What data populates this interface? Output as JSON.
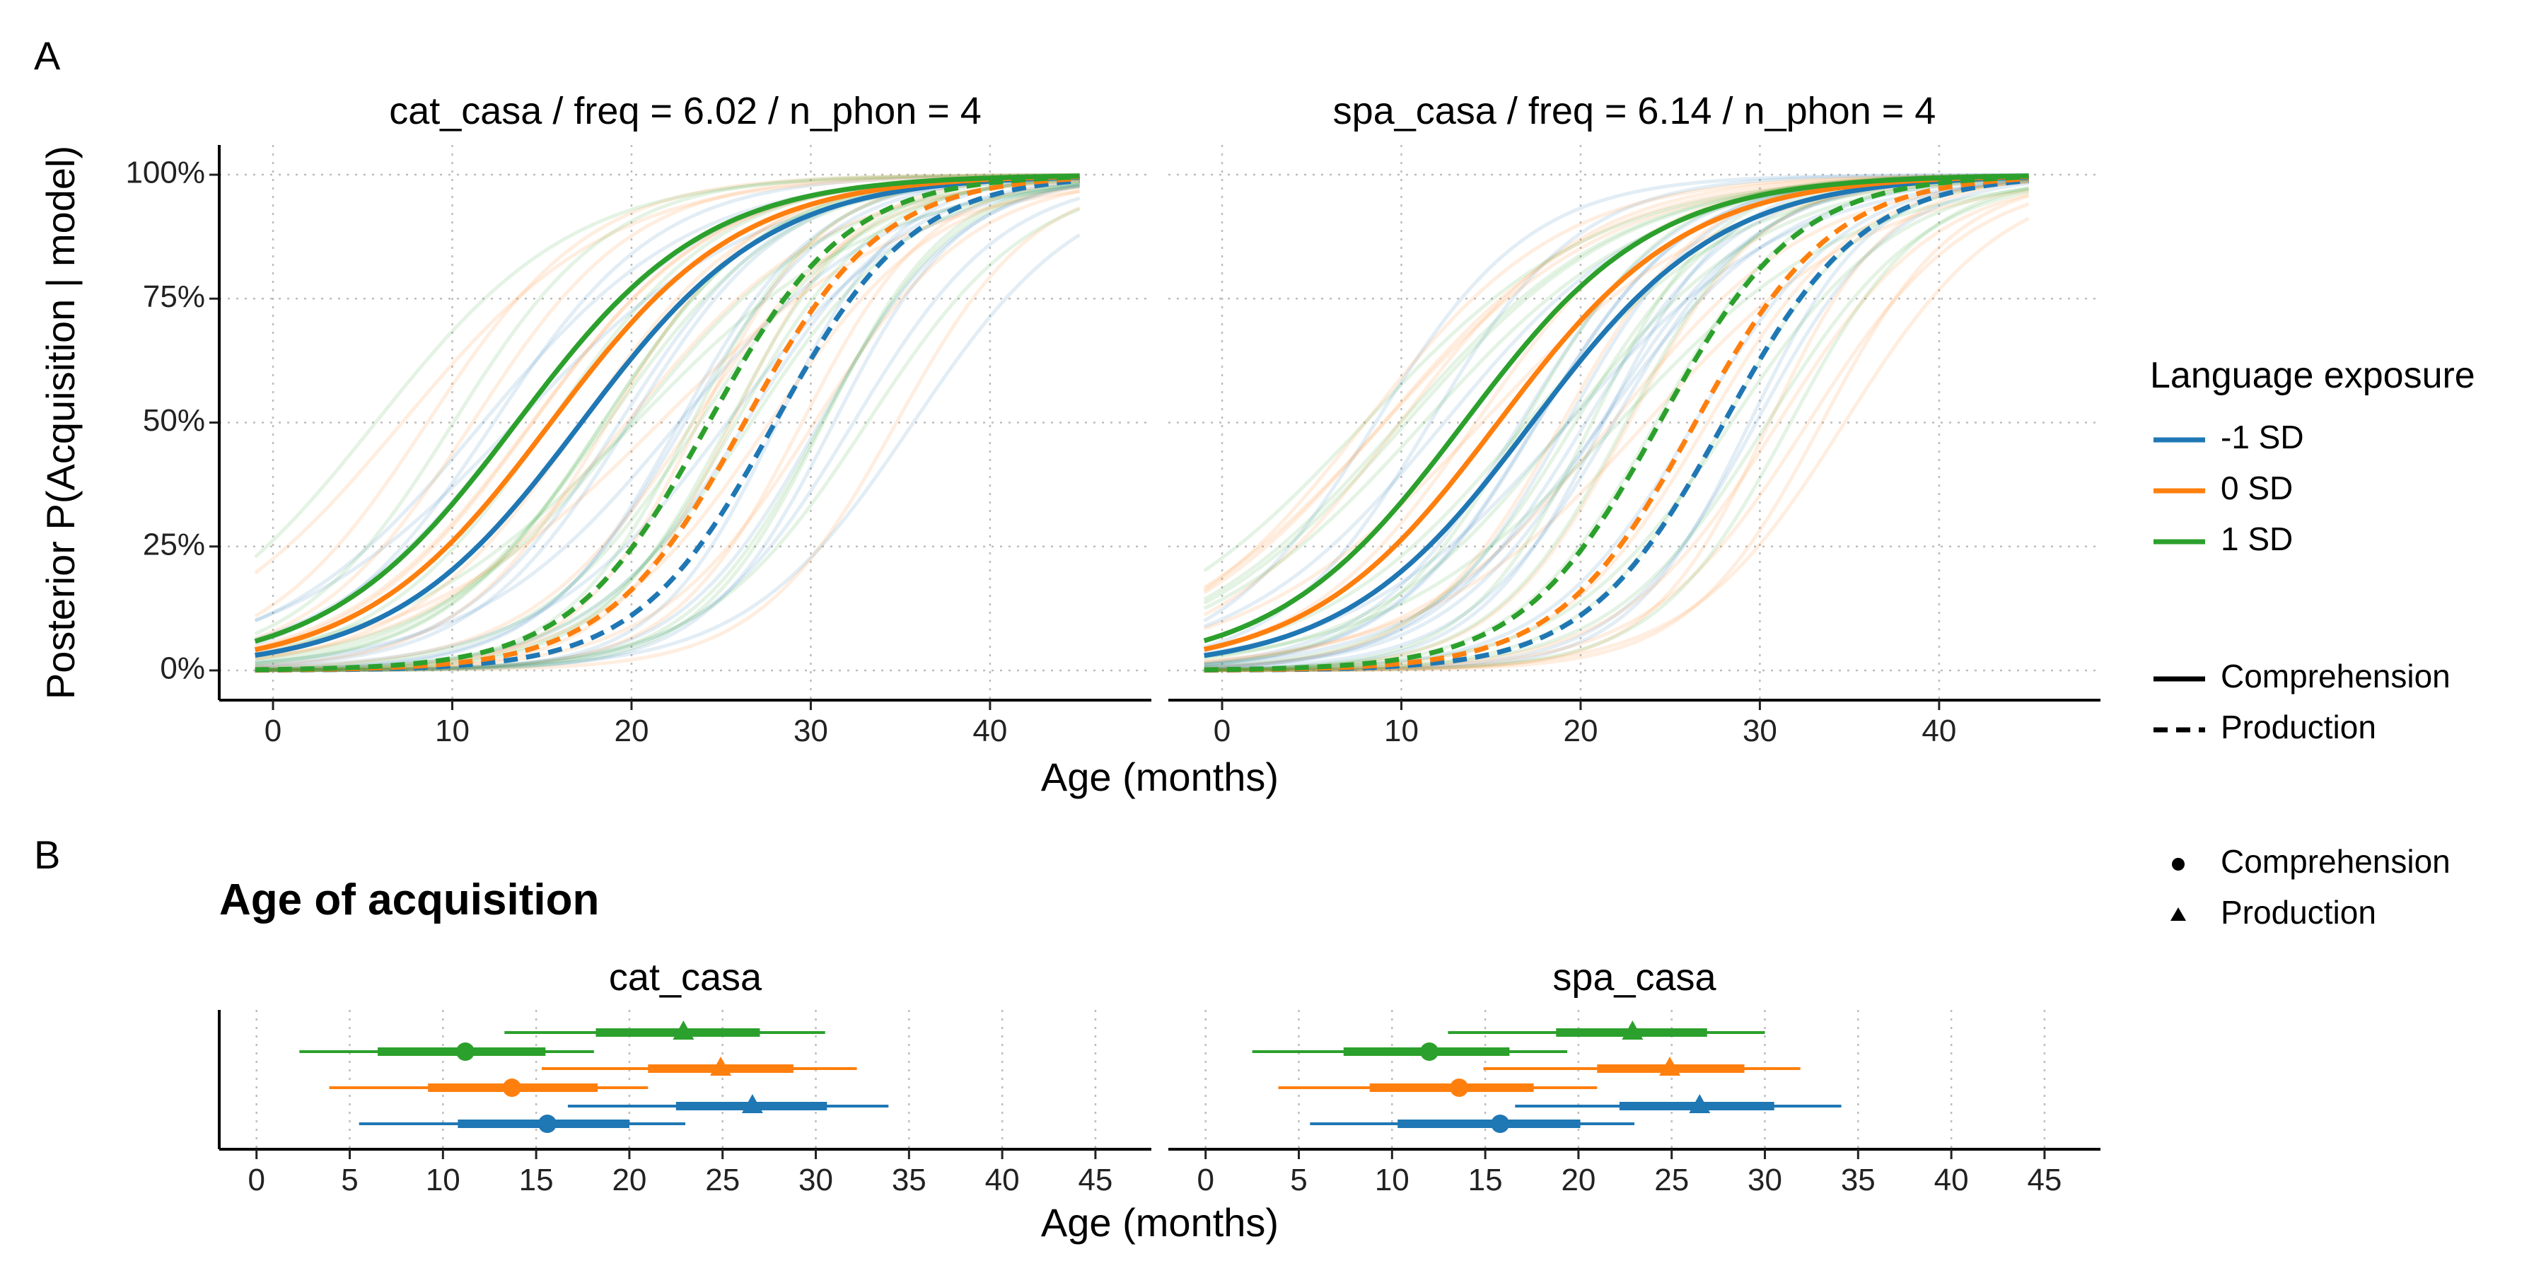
{
  "panel_labels": {
    "a": "A",
    "b": "B"
  },
  "chart_data": [
    {
      "type": "line",
      "panel": "A",
      "facets": [
        "cat_casa / freq = 6.02 / n_phon = 4",
        "spa_casa / freq = 6.14 / n_phon = 4"
      ],
      "xlabel": "Age (months)",
      "ylabel": "Posterior P(Acquisition | model)",
      "xlim": [
        -3,
        49
      ],
      "ylim": [
        -0.06,
        1.06
      ],
      "xticks": [
        0,
        10,
        20,
        30,
        40
      ],
      "yticks": [
        0,
        0.25,
        0.5,
        0.75,
        1
      ],
      "ytick_labels": [
        "0%",
        "25%",
        "50%",
        "75%",
        "100%"
      ],
      "grid": true,
      "x_range_plotted": [
        -1,
        45
      ],
      "series": [
        {
          "facet": 0,
          "exposure": "-1 SD",
          "type": "Comprehension",
          "color": "#1F77B4",
          "midpoint": 17.2,
          "slope": 0.19
        },
        {
          "facet": 0,
          "exposure": "0 SD",
          "type": "Comprehension",
          "color": "#FF7F0E",
          "midpoint": 15.5,
          "slope": 0.19
        },
        {
          "facet": 0,
          "exposure": "1 SD",
          "type": "Comprehension",
          "color": "#2CA02C",
          "midpoint": 13.6,
          "slope": 0.19
        },
        {
          "facet": 0,
          "exposure": "-1 SD",
          "type": "Production",
          "color": "#1F77B4",
          "midpoint": 28.0,
          "slope": 0.26
        },
        {
          "facet": 0,
          "exposure": "0 SD",
          "type": "Production",
          "color": "#FF7F0E",
          "midpoint": 26.3,
          "slope": 0.26
        },
        {
          "facet": 0,
          "exposure": "1 SD",
          "type": "Production",
          "color": "#2CA02C",
          "midpoint": 24.3,
          "slope": 0.26
        },
        {
          "facet": 1,
          "exposure": "-1 SD",
          "type": "Comprehension",
          "color": "#1F77B4",
          "midpoint": 17.3,
          "slope": 0.19
        },
        {
          "facet": 1,
          "exposure": "0 SD",
          "type": "Comprehension",
          "color": "#FF7F0E",
          "midpoint": 15.4,
          "slope": 0.19
        },
        {
          "facet": 1,
          "exposure": "1 SD",
          "type": "Comprehension",
          "color": "#2CA02C",
          "midpoint": 13.5,
          "slope": 0.19
        },
        {
          "facet": 1,
          "exposure": "-1 SD",
          "type": "Production",
          "color": "#1F77B4",
          "midpoint": 28.0,
          "slope": 0.26
        },
        {
          "facet": 1,
          "exposure": "0 SD",
          "type": "Production",
          "color": "#FF7F0E",
          "midpoint": 26.4,
          "slope": 0.26
        },
        {
          "facet": 1,
          "exposure": "1 SD",
          "type": "Production",
          "color": "#2CA02C",
          "midpoint": 24.4,
          "slope": 0.26
        }
      ],
      "posterior_draws": {
        "per_series": 8,
        "opacity": 0.13,
        "midpoint_spread": 9,
        "slope_spread": 0.05
      }
    },
    {
      "type": "scatter",
      "panel": "B",
      "title": "Age of acquisition",
      "facets": [
        "cat_casa",
        "spa_casa"
      ],
      "xlabel": "Age (months)",
      "xlim": [
        -2,
        48
      ],
      "xticks": [
        0,
        5,
        10,
        15,
        20,
        25,
        30,
        35,
        40,
        45
      ],
      "grid": true,
      "rows": [
        {
          "facet": 0,
          "exposure": "1 SD",
          "type": "Production",
          "color": "#2CA02C",
          "median": 22.9,
          "inner": [
            18.2,
            27.0
          ],
          "outer": [
            13.3,
            30.5
          ]
        },
        {
          "facet": 0,
          "exposure": "1 SD",
          "type": "Comprehension",
          "color": "#2CA02C",
          "median": 11.2,
          "inner": [
            6.5,
            15.5
          ],
          "outer": [
            2.3,
            18.1
          ]
        },
        {
          "facet": 0,
          "exposure": "0 SD",
          "type": "Production",
          "color": "#FF7F0E",
          "median": 24.9,
          "inner": [
            21.0,
            28.8
          ],
          "outer": [
            15.3,
            32.2
          ]
        },
        {
          "facet": 0,
          "exposure": "0 SD",
          "type": "Comprehension",
          "color": "#FF7F0E",
          "median": 13.7,
          "inner": [
            9.2,
            18.3
          ],
          "outer": [
            3.9,
            21.0
          ]
        },
        {
          "facet": 0,
          "exposure": "-1 SD",
          "type": "Production",
          "color": "#1F77B4",
          "median": 26.6,
          "inner": [
            22.5,
            30.6
          ],
          "outer": [
            16.7,
            33.9
          ]
        },
        {
          "facet": 0,
          "exposure": "-1 SD",
          "type": "Comprehension",
          "color": "#1F77B4",
          "median": 15.6,
          "inner": [
            10.8,
            20.0
          ],
          "outer": [
            5.5,
            23.0
          ]
        },
        {
          "facet": 1,
          "exposure": "1 SD",
          "type": "Production",
          "color": "#2CA02C",
          "median": 22.9,
          "inner": [
            18.8,
            26.9
          ],
          "outer": [
            13.0,
            30.0
          ]
        },
        {
          "facet": 1,
          "exposure": "1 SD",
          "type": "Comprehension",
          "color": "#2CA02C",
          "median": 12.0,
          "inner": [
            7.4,
            16.3
          ],
          "outer": [
            2.5,
            19.4
          ]
        },
        {
          "facet": 1,
          "exposure": "0 SD",
          "type": "Production",
          "color": "#FF7F0E",
          "median": 24.9,
          "inner": [
            21.0,
            28.9
          ],
          "outer": [
            14.9,
            31.9
          ]
        },
        {
          "facet": 1,
          "exposure": "0 SD",
          "type": "Comprehension",
          "color": "#FF7F0E",
          "median": 13.6,
          "inner": [
            8.8,
            17.6
          ],
          "outer": [
            3.9,
            21.0
          ]
        },
        {
          "facet": 1,
          "exposure": "-1 SD",
          "type": "Production",
          "color": "#1F77B4",
          "median": 26.5,
          "inner": [
            22.2,
            30.5
          ],
          "outer": [
            16.6,
            34.1
          ]
        },
        {
          "facet": 1,
          "exposure": "-1 SD",
          "type": "Comprehension",
          "color": "#1F77B4",
          "median": 15.8,
          "inner": [
            10.3,
            20.1
          ],
          "outer": [
            5.6,
            23.0
          ]
        }
      ]
    }
  ],
  "legend": {
    "exposure_title": "Language exposure",
    "exposure_items": [
      {
        "label": "-1 SD",
        "color": "#1F77B4"
      },
      {
        "label": "0 SD",
        "color": "#FF7F0E"
      },
      {
        "label": "1 SD",
        "color": "#2CA02C"
      }
    ],
    "linetype_items": [
      {
        "label": "Comprehension",
        "style": "solid"
      },
      {
        "label": "Production",
        "style": "dashed"
      }
    ],
    "shape_items": [
      {
        "label": "Comprehension",
        "shape": "circle"
      },
      {
        "label": "Production",
        "shape": "triangle"
      }
    ]
  }
}
